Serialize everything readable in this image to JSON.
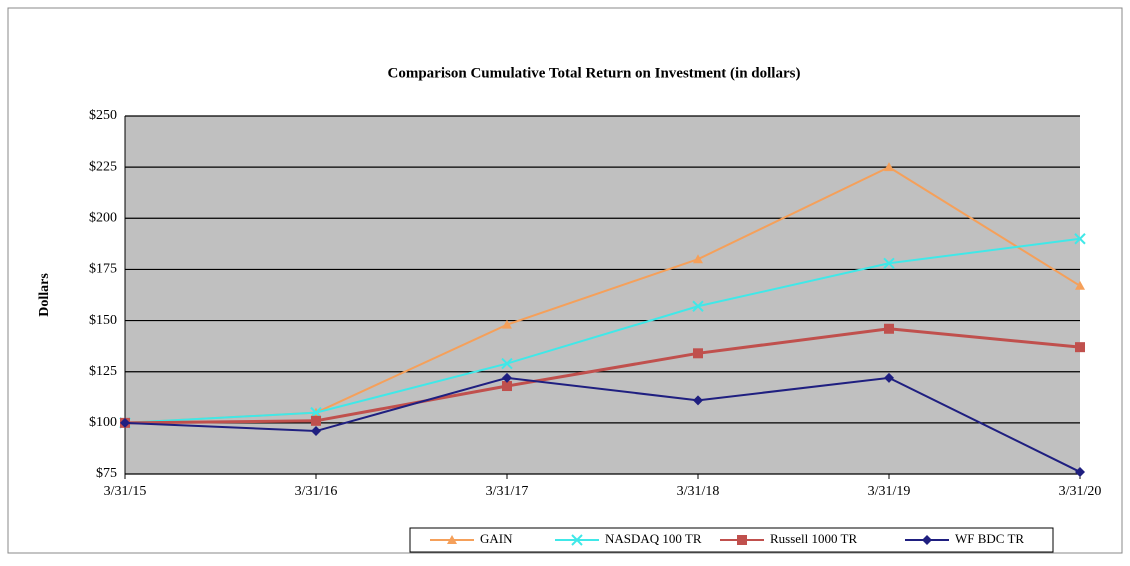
{
  "chart_data": {
    "type": "line",
    "title": "Comparison  Cumulative  Total Return on Investment  (in dollars)",
    "y_label": "Dollars",
    "categories": [
      "3/31/15",
      "3/31/16",
      "3/31/17",
      "3/31/18",
      "3/31/19",
      "3/31/20"
    ],
    "series": [
      {
        "name": "GAIN",
        "color": "#f5a05a",
        "marker": "triangle",
        "values": [
          100,
          105,
          148,
          180,
          225,
          167
        ]
      },
      {
        "name": "NASDAQ 100 TR",
        "color": "#40e8e8",
        "marker": "x",
        "values": [
          100,
          105,
          129,
          157,
          178,
          190
        ]
      },
      {
        "name": "Russell 1000 TR",
        "color": "#c0504d",
        "marker": "square",
        "values": [
          100,
          101,
          118,
          134,
          146,
          137
        ]
      },
      {
        "name": "WF BDC TR",
        "color": "#1f1f80",
        "marker": "diamond",
        "values": [
          100,
          96,
          122,
          111,
          122,
          76
        ]
      }
    ],
    "ylim": [
      75,
      250
    ],
    "yticks": [
      {
        "value": 75,
        "label": "$75"
      },
      {
        "value": 100,
        "label": "$100"
      },
      {
        "value": 125,
        "label": "$125"
      },
      {
        "value": 150,
        "label": "$150"
      },
      {
        "value": 175,
        "label": "$175"
      },
      {
        "value": 200,
        "label": "$200"
      },
      {
        "value": 225,
        "label": "$225"
      },
      {
        "value": 250,
        "label": "$250"
      }
    ],
    "grid": true,
    "legend": "bottom"
  }
}
